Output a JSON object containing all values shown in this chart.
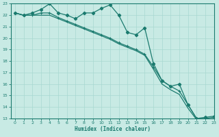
{
  "xlabel": "Humidex (Indice chaleur)",
  "bg_color": "#c8eae4",
  "line_color": "#1a7a6e",
  "grid_color": "#a8d8d0",
  "xmin": -0.5,
  "xmax": 23,
  "ymin": 13,
  "ymax": 23,
  "xticks": [
    0,
    1,
    2,
    3,
    4,
    5,
    6,
    7,
    8,
    9,
    10,
    11,
    12,
    13,
    14,
    15,
    16,
    17,
    18,
    19,
    20,
    21,
    22,
    23
  ],
  "yticks": [
    13,
    14,
    15,
    16,
    17,
    18,
    19,
    20,
    21,
    22,
    23
  ],
  "line_jagged": [
    22.2,
    22.0,
    22.2,
    22.5,
    23.0,
    22.2,
    22.0,
    21.7,
    22.2,
    22.2,
    22.6,
    22.9,
    22.0,
    20.5,
    20.3,
    20.9,
    17.8,
    16.3,
    15.8,
    16.0,
    14.2,
    13.0,
    13.1,
    13.2
  ],
  "line_upper": [
    22.2,
    22.0,
    22.0,
    22.2,
    22.2,
    21.8,
    21.5,
    21.2,
    20.9,
    20.6,
    20.3,
    20.0,
    19.6,
    19.3,
    19.0,
    18.6,
    17.5,
    16.3,
    15.8,
    15.4,
    14.2,
    13.0,
    13.0,
    13.1
  ],
  "line_lower": [
    22.2,
    22.0,
    22.0,
    22.0,
    22.0,
    21.7,
    21.4,
    21.1,
    20.8,
    20.5,
    20.2,
    19.9,
    19.5,
    19.2,
    18.9,
    18.5,
    17.3,
    16.0,
    15.5,
    15.1,
    13.9,
    12.9,
    12.9,
    13.0
  ]
}
